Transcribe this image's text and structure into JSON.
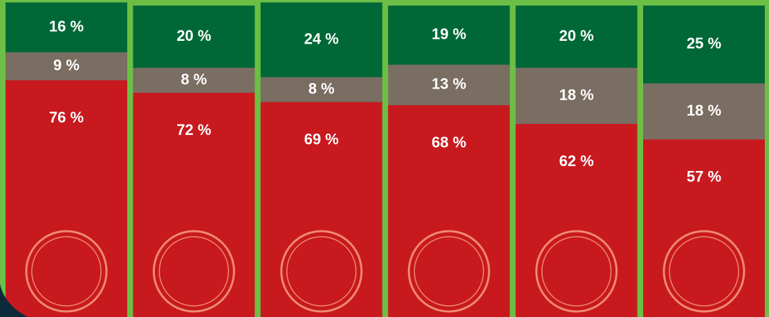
{
  "chart_data": {
    "type": "stacked_bar",
    "categories": [
      null,
      null,
      null,
      null,
      null,
      null
    ],
    "ylim": [
      0,
      100
    ],
    "series": [
      {
        "name": null,
        "color": "#c8191f",
        "values": [
          76,
          72,
          69,
          68,
          62,
          57
        ],
        "value_labels": [
          "76 %",
          "72 %",
          "69 %",
          "68 %",
          "62 %",
          "57 %"
        ]
      },
      {
        "name": null,
        "color": "#7a6d61",
        "values": [
          9,
          8,
          8,
          13,
          18,
          18
        ],
        "value_labels": [
          "9 %",
          "8 %",
          "8 %",
          "13 %",
          "18 %",
          "18 %"
        ]
      },
      {
        "name": null,
        "color": "#006837",
        "values": [
          16,
          20,
          24,
          19,
          20,
          25
        ],
        "value_labels": [
          "16 %",
          "20 %",
          "24 %",
          "19 %",
          "20 %",
          "25 %"
        ]
      }
    ]
  }
}
